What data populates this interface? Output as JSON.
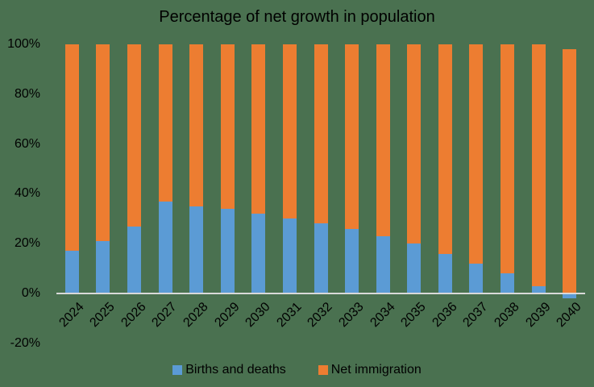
{
  "chart_data": {
    "type": "bar",
    "stacked": true,
    "title": "Percentage of net growth in population",
    "xlabel": "",
    "ylabel": "",
    "ylim": [
      -0.2,
      1.0
    ],
    "yticks": [
      "100%",
      "80%",
      "60%",
      "40%",
      "20%",
      "0%",
      "-20%"
    ],
    "categories": [
      "2024",
      "2025",
      "2026",
      "2027",
      "2028",
      "2029",
      "2030",
      "2031",
      "2032",
      "2033",
      "2034",
      "2035",
      "2036",
      "2037",
      "2038",
      "2039",
      "2040"
    ],
    "series": [
      {
        "name": "Births and deaths",
        "color": "#5b9bd5",
        "values": [
          17,
          21,
          27,
          37,
          35,
          34,
          32,
          30,
          28,
          26,
          23,
          20,
          16,
          12,
          8,
          3,
          -2
        ]
      },
      {
        "name": "Net immigration",
        "color": "#ed7d31",
        "values": [
          83,
          79,
          73,
          63,
          65,
          66,
          68,
          70,
          72,
          74,
          77,
          80,
          84,
          88,
          92,
          97,
          98
        ]
      }
    ],
    "legend_position": "bottom",
    "grid": false
  }
}
